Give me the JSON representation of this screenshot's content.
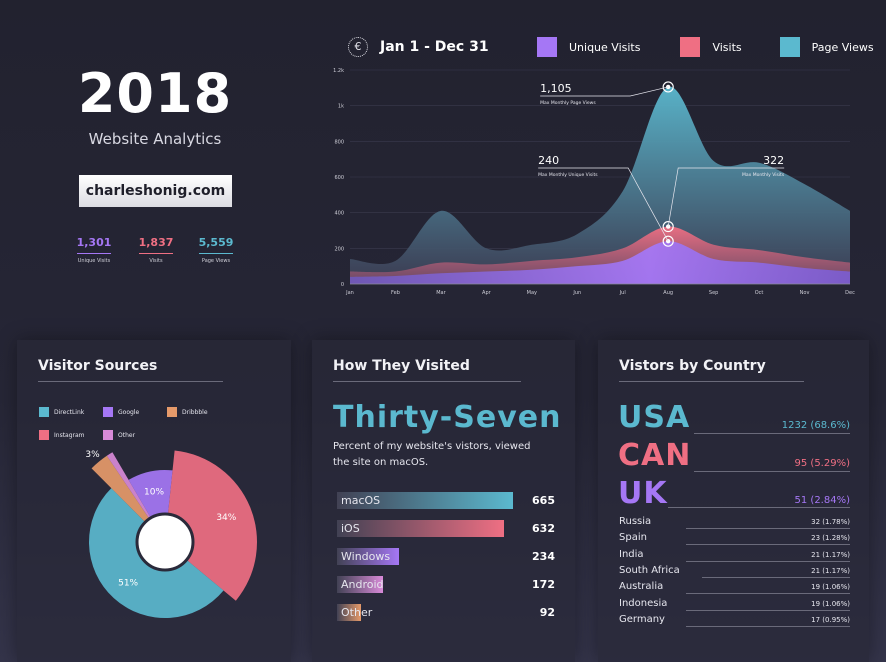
{
  "header": {
    "year": "2018",
    "subtitle": "Website Analytics",
    "domain": "charleshonig.com",
    "stats": [
      {
        "value": "1,301",
        "label": "Unique Visits",
        "color": "#a577f5"
      },
      {
        "value": "1,837",
        "label": "Visits",
        "color": "#ef6f83"
      },
      {
        "value": "5,559",
        "label": "Page Views",
        "color": "#5bb9cf"
      }
    ]
  },
  "legend": {
    "date_range": "Jan 1 - Dec 31",
    "icon": "calendar-icon",
    "items": [
      {
        "label": "Unique Visits",
        "color": "#a577f5"
      },
      {
        "label": "Visits",
        "color": "#ef6f83"
      },
      {
        "label": "Page Views",
        "color": "#5bb9cf"
      }
    ]
  },
  "chart_data": [
    {
      "type": "area",
      "x": [
        "Jan",
        "Feb",
        "Mar",
        "Apr",
        "May",
        "Jun",
        "Jul",
        "Aug",
        "Sep",
        "Oct",
        "Nov",
        "Dec"
      ],
      "y_ticks": [
        "0",
        "200",
        "400",
        "600",
        "800",
        "1k",
        "1.2k"
      ],
      "ylim": [
        0,
        1200
      ],
      "series": [
        {
          "name": "Page Views",
          "color": "#5bb9cf",
          "values": [
            140,
            130,
            410,
            200,
            220,
            280,
            520,
            1105,
            690,
            680,
            560,
            410
          ]
        },
        {
          "name": "Visits",
          "color": "#ef6f83",
          "values": [
            70,
            70,
            120,
            110,
            130,
            150,
            200,
            322,
            220,
            190,
            150,
            120
          ]
        },
        {
          "name": "Unique Visits",
          "color": "#a577f5",
          "values": [
            40,
            45,
            60,
            70,
            80,
            100,
            130,
            240,
            140,
            120,
            90,
            70
          ]
        }
      ],
      "annotations": [
        {
          "value": "1,105",
          "label": "Max Monthly Page Views",
          "series": "Page Views",
          "x": "Aug",
          "y": 1105
        },
        {
          "value": "240",
          "label": "Max Monthly Unique Visits",
          "series": "Unique Visits",
          "x": "Aug",
          "y": 240
        },
        {
          "value": "322",
          "label": "Max Monthly Visits",
          "series": "Visits",
          "x": "Aug",
          "y": 322
        }
      ]
    },
    {
      "type": "pie",
      "title": "Visitor Sources",
      "legend": [
        {
          "label": "DirectLink",
          "color": "#5bb9cf"
        },
        {
          "label": "Google",
          "color": "#a577f5"
        },
        {
          "label": "Dribbble",
          "color": "#e69a6a"
        },
        {
          "label": "Instagram",
          "color": "#ef6f83"
        },
        {
          "label": "Other",
          "color": "#d88ad8"
        }
      ],
      "slices": [
        {
          "name": "Instagram",
          "value": 34,
          "label": "34%",
          "color": "#ef6f83"
        },
        {
          "name": "DirectLink",
          "value": 51,
          "label": "51%",
          "color": "#5bb9cf"
        },
        {
          "name": "Dribbble",
          "value": 3,
          "label": "3%",
          "color": "#e69a6a"
        },
        {
          "name": "Other",
          "value": 1,
          "label": "1%",
          "color": "#d88ad8"
        },
        {
          "name": "Google",
          "value": 10,
          "label": "10%",
          "color": "#a577f5"
        }
      ]
    },
    {
      "type": "bar",
      "title": "How They Visited",
      "categories": [
        "macOS",
        "iOS",
        "Windows",
        "Android",
        "Other"
      ],
      "values": [
        665,
        632,
        234,
        172,
        92
      ],
      "colors": [
        "#5bb9cf",
        "#ef6f83",
        "#a577f5",
        "#d88ad8",
        "#e69a6a"
      ],
      "max": 665
    }
  ],
  "how": {
    "title": "How They Visited",
    "headline": "Thirty-Seven",
    "description_line1": "Percent of my website's vistors, viewed",
    "description_line2": "the site on macOS."
  },
  "country": {
    "title": "Vistors by Country",
    "top": [
      {
        "code": "USA",
        "value": "1232 (68.6%)",
        "color": "#5bb9cf"
      },
      {
        "code": "CAN",
        "value": "95 (5.29%)",
        "color": "#ef6f83"
      },
      {
        "code": "UK",
        "value": "51 (2.84%)",
        "color": "#a577f5"
      }
    ],
    "rest": [
      {
        "name": "Russia",
        "value": "32 (1.78%)"
      },
      {
        "name": "Spain",
        "value": "23 (1.28%)"
      },
      {
        "name": "India",
        "value": "21 (1.17%)"
      },
      {
        "name": "South Africa",
        "value": "21 (1.17%)"
      },
      {
        "name": "Australia",
        "value": "19 (1.06%)"
      },
      {
        "name": "Indonesia",
        "value": "19 (1.06%)"
      },
      {
        "name": "Germany",
        "value": "17 (0.95%)"
      }
    ]
  },
  "sources": {
    "title": "Visitor Sources"
  }
}
